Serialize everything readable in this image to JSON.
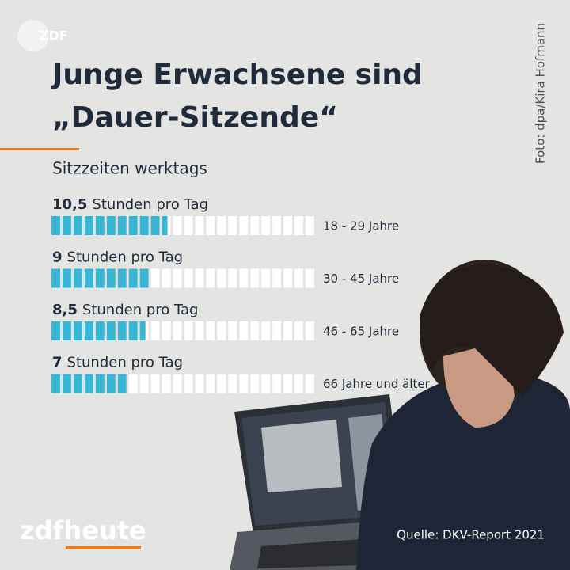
{
  "chart_data": {
    "type": "segment-bar",
    "logo": "ZDF",
    "title": [
      "Junge Erwachsene sind",
      "„Dauer-Sitzende“"
    ],
    "subtitle": "Sitzzeiten werktags",
    "credit": "Foto: dpa/Kira Hofmann",
    "unit_label": "Stunden pro Tag",
    "categories": [
      "18 - 29 Jahre",
      "30 - 45 Jahre",
      "46 - 65 Jahre",
      "66 Jahre und älter"
    ],
    "values": [
      10.5,
      9,
      8.5,
      7
    ],
    "value_labels": [
      "10,5",
      "9",
      "8,5",
      "7"
    ],
    "xlim": [
      0,
      24
    ],
    "color": "#38b6d4",
    "source": "Quelle: DKV-Report 2021",
    "brand": [
      "zdf",
      "heute"
    ]
  }
}
